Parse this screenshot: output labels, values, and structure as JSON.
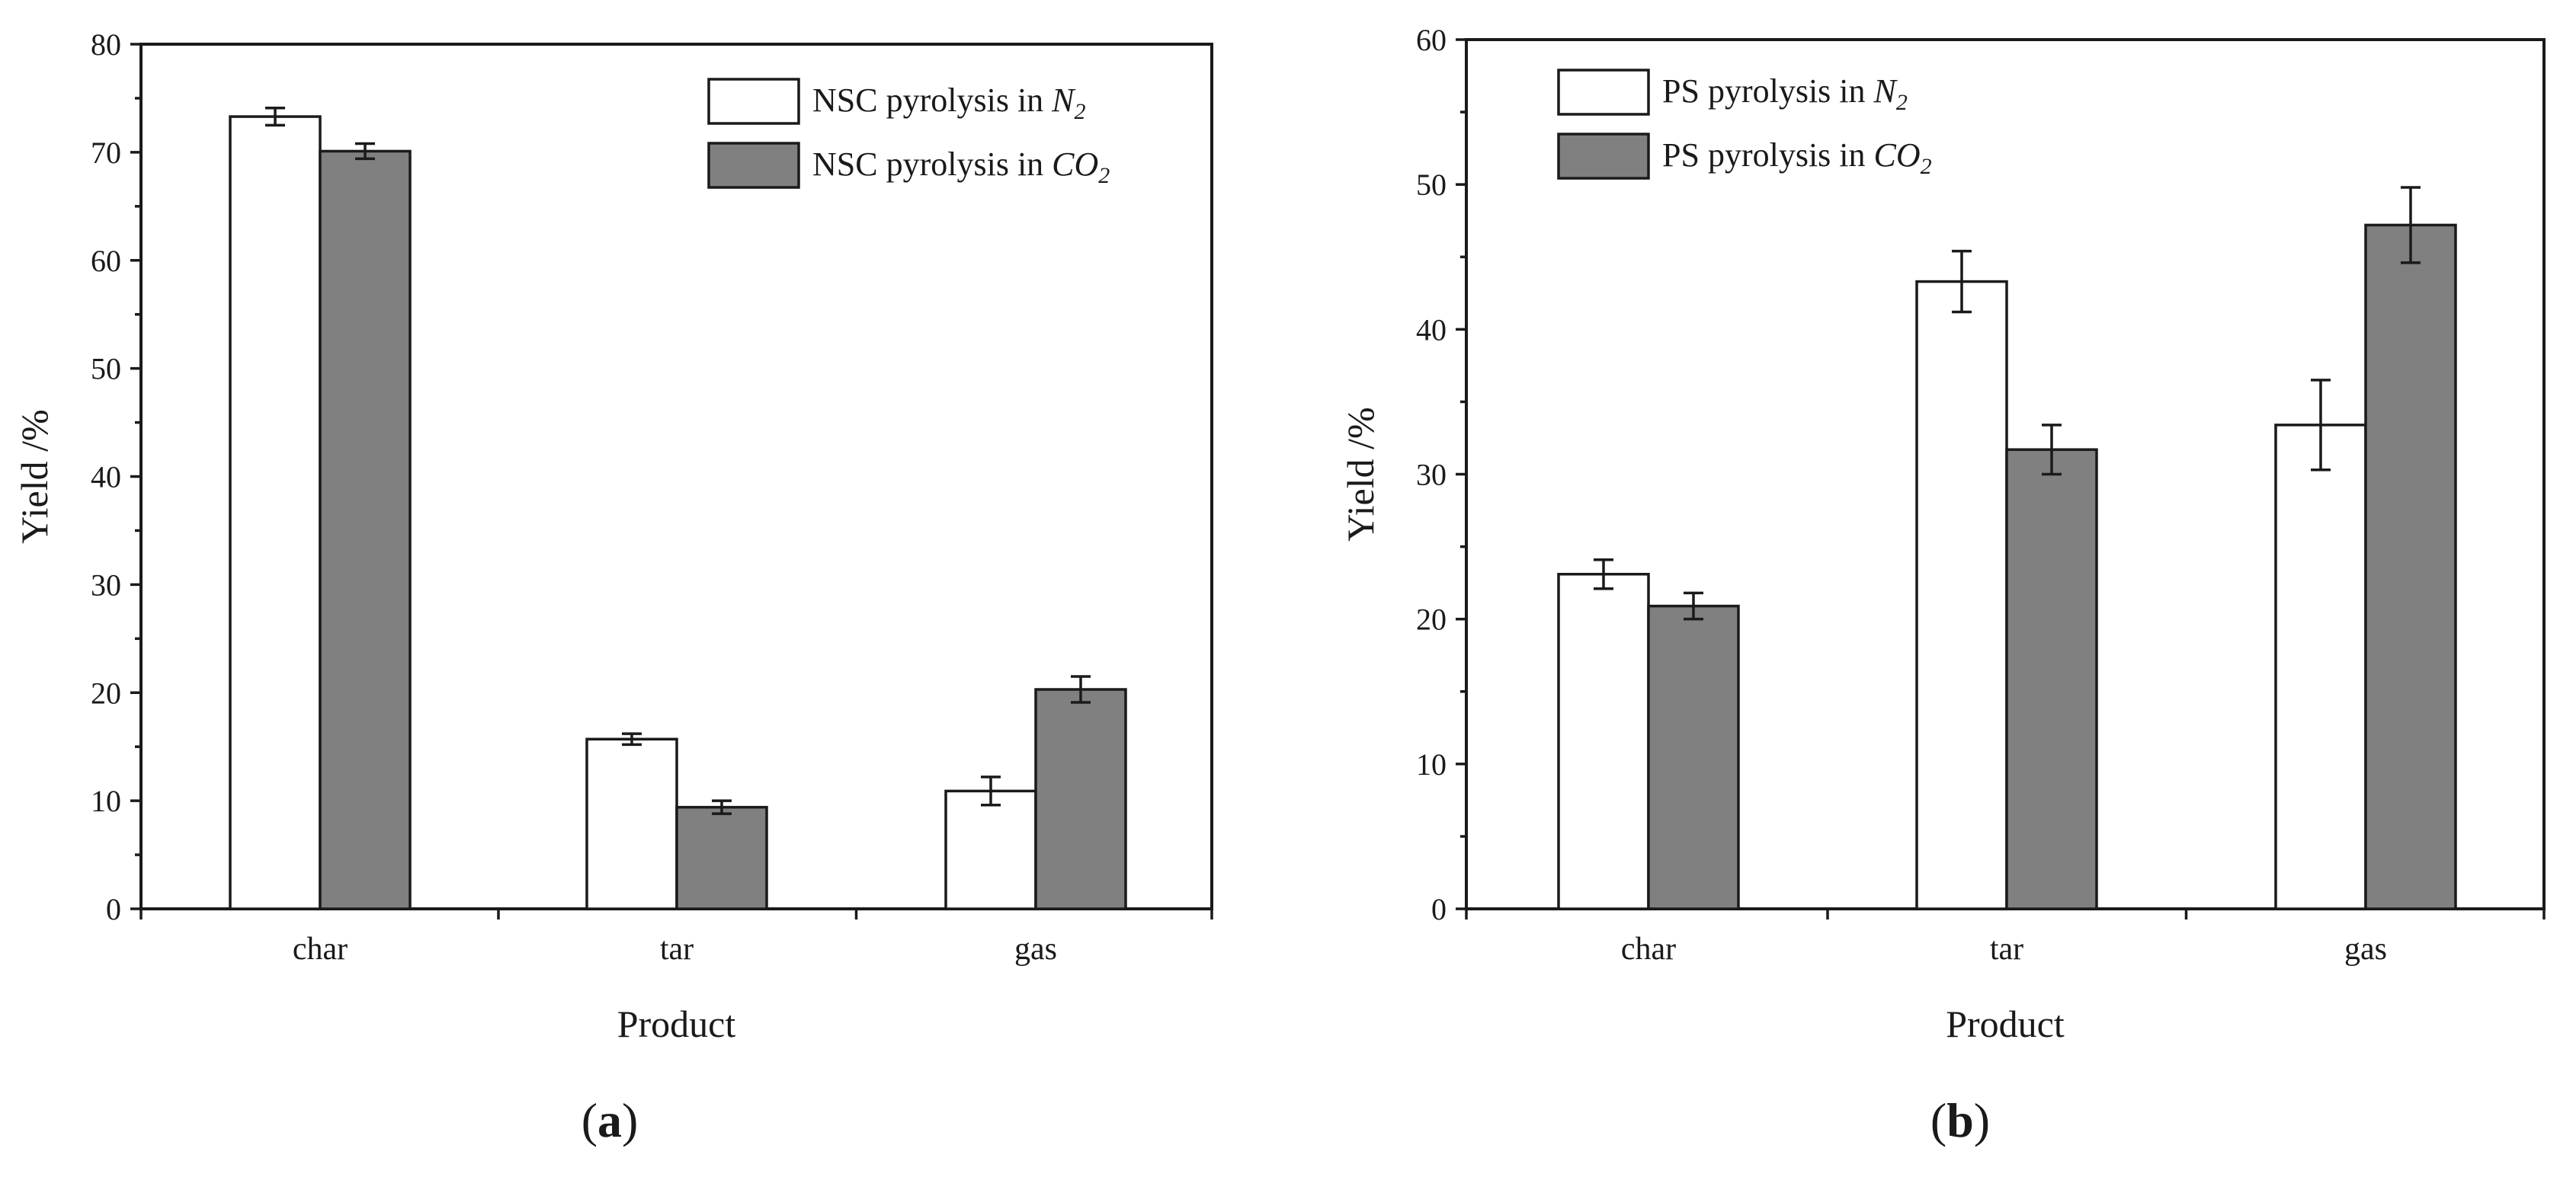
{
  "panels": [
    {
      "id": "a",
      "panel_label": "(a)",
      "chart_data": {
        "type": "bar",
        "title": "",
        "xlabel": "Product",
        "ylabel": "Yield /%",
        "ylim": [
          0,
          80
        ],
        "yticks": [
          0,
          10,
          20,
          30,
          40,
          50,
          60,
          70,
          80
        ],
        "grid": false,
        "legend_position": "top-right",
        "categories": [
          "char",
          "tar",
          "gas"
        ],
        "series": [
          {
            "name": "NSC pyrolysis in N2",
            "legend_prefix": "NSC pyrolysis in ",
            "legend_gas": "N",
            "legend_sub": "2",
            "color": "#ffffff",
            "values": [
              73.3,
              15.7,
              10.9
            ],
            "errors": [
              0.8,
              0.5,
              1.3
            ]
          },
          {
            "name": "NSC pyrolysis in CO2",
            "legend_prefix": "NSC pyrolysis in ",
            "legend_gas": "CO",
            "legend_sub": "2",
            "color": "#808080",
            "values": [
              70.1,
              9.4,
              20.3
            ],
            "errors": [
              0.7,
              0.6,
              1.2
            ]
          }
        ]
      }
    },
    {
      "id": "b",
      "panel_label": "(b)",
      "chart_data": {
        "type": "bar",
        "title": "",
        "xlabel": "Product",
        "ylabel": "Yield /%",
        "ylim": [
          0,
          60
        ],
        "yticks": [
          0,
          10,
          20,
          30,
          40,
          50,
          60
        ],
        "grid": false,
        "legend_position": "top-left",
        "categories": [
          "char",
          "tar",
          "gas"
        ],
        "series": [
          {
            "name": "PS pyrolysis in N2",
            "legend_prefix": "PS pyrolysis in ",
            "legend_gas": "N",
            "legend_sub": "2",
            "color": "#ffffff",
            "values": [
              23.1,
              43.3,
              33.4
            ],
            "errors": [
              1.0,
              2.1,
              3.1
            ]
          },
          {
            "name": "PS pyrolysis in CO2",
            "legend_prefix": "PS pyrolysis in ",
            "legend_gas": "CO",
            "legend_sub": "2",
            "color": "#808080",
            "values": [
              20.9,
              31.7,
              47.2
            ],
            "errors": [
              0.9,
              1.7,
              2.6
            ]
          }
        ]
      }
    }
  ]
}
